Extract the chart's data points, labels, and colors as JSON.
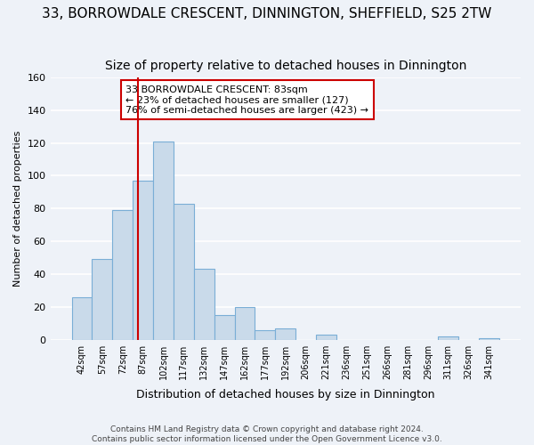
{
  "title": "33, BORROWDALE CRESCENT, DINNINGTON, SHEFFIELD, S25 2TW",
  "subtitle": "Size of property relative to detached houses in Dinnington",
  "xlabel": "Distribution of detached houses by size in Dinnington",
  "ylabel": "Number of detached properties",
  "bar_labels": [
    "42sqm",
    "57sqm",
    "72sqm",
    "87sqm",
    "102sqm",
    "117sqm",
    "132sqm",
    "147sqm",
    "162sqm",
    "177sqm",
    "192sqm",
    "206sqm",
    "221sqm",
    "236sqm",
    "251sqm",
    "266sqm",
    "281sqm",
    "296sqm",
    "311sqm",
    "326sqm",
    "341sqm"
  ],
  "bar_values": [
    26,
    49,
    79,
    97,
    121,
    83,
    43,
    15,
    20,
    6,
    7,
    0,
    3,
    0,
    0,
    0,
    0,
    0,
    2,
    0,
    1
  ],
  "bar_color": "#c9daea",
  "bar_edge_color": "#7aaed6",
  "ylim": [
    0,
    160
  ],
  "yticks": [
    0,
    20,
    40,
    60,
    80,
    100,
    120,
    140,
    160
  ],
  "vline_color": "#cc0000",
  "annotation_title": "33 BORROWDALE CRESCENT: 83sqm",
  "annotation_line1": "← 23% of detached houses are smaller (127)",
  "annotation_line2": "76% of semi-detached houses are larger (423) →",
  "footer1": "Contains HM Land Registry data © Crown copyright and database right 2024.",
  "footer2": "Contains public sector information licensed under the Open Government Licence v3.0.",
  "background_color": "#eef2f8",
  "grid_color": "#ffffff",
  "title_fontsize": 11,
  "subtitle_fontsize": 10
}
